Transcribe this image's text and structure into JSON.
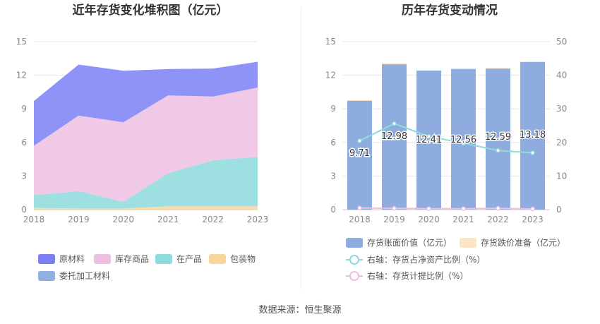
{
  "left_chart": {
    "title": "近年存货变化堆积图（亿元）",
    "legend": [
      {
        "label": "原材料",
        "color": "#7b7ff5"
      },
      {
        "label": "库存商品",
        "color": "#ecbfe0"
      },
      {
        "label": "在产品",
        "color": "#8ddbdc"
      },
      {
        "label": "包装物",
        "color": "#f8d69c"
      },
      {
        "label": "委托加工材料",
        "color": "#8fb0e0"
      }
    ]
  },
  "right_chart": {
    "title": "历年存货变动情况",
    "legend": [
      {
        "label": "存货账面价值（亿元）",
        "color": "#8eadde",
        "kind": "bar"
      },
      {
        "label": "存货跌价准备（亿元）",
        "color": "#fce6c6",
        "kind": "bar"
      },
      {
        "label": "右轴：存货占净资产比例（%）",
        "color": "#8ddbdc",
        "kind": "line"
      },
      {
        "label": "右轴：存货计提比例（%）",
        "color": "#ecbfe0",
        "kind": "line"
      }
    ]
  },
  "source_text": "数据来源：恒生聚源",
  "chart_data": [
    {
      "type": "area",
      "stacked": true,
      "title": "近年存货变化堆积图（亿元）",
      "categories": [
        "2018",
        "2019",
        "2020",
        "2021",
        "2022",
        "2023"
      ],
      "ylim": [
        0,
        15
      ],
      "yticks": [
        0,
        3,
        6,
        9,
        12,
        15
      ],
      "series": [
        {
          "name": "包装物",
          "values": [
            0.15,
            0.1,
            0.1,
            0.3,
            0.3,
            0.3
          ]
        },
        {
          "name": "在产品",
          "values": [
            1.15,
            1.55,
            0.6,
            2.95,
            4.1,
            4.4
          ]
        },
        {
          "name": "库存商品",
          "values": [
            4.4,
            6.75,
            7.1,
            6.95,
            5.7,
            6.2
          ]
        },
        {
          "name": "原材料",
          "values": [
            4.0,
            4.55,
            4.6,
            2.35,
            2.5,
            2.3
          ]
        },
        {
          "name": "委托加工材料",
          "values": [
            0,
            0,
            0,
            0,
            0,
            0
          ]
        }
      ]
    },
    {
      "type": "bar",
      "title": "历年存货变动情况",
      "categories": [
        "2018",
        "2019",
        "2020",
        "2021",
        "2022",
        "2023"
      ],
      "ylim": [
        0,
        15
      ],
      "yticks": [
        0,
        3,
        6,
        9,
        12,
        15
      ],
      "y2lim": [
        0,
        50
      ],
      "y2ticks": [
        0,
        10,
        20,
        30,
        40,
        50
      ],
      "series": [
        {
          "name": "存货账面价值（亿元）",
          "axis": "left",
          "values": [
            9.71,
            12.98,
            12.41,
            12.56,
            12.59,
            13.18
          ],
          "labels": [
            "9.71",
            "12.98",
            "12.41",
            "12.56",
            "12.59",
            "13.18"
          ]
        },
        {
          "name": "存货跌价准备（亿元）",
          "axis": "left",
          "values": [
            0.05,
            0.05,
            0.03,
            0.03,
            0.05,
            0.03
          ]
        },
        {
          "name": "右轴：存货占净资产比例（%）",
          "axis": "right",
          "type": "line",
          "values": [
            20.5,
            25.6,
            21.8,
            19.8,
            17.6,
            16.9
          ]
        },
        {
          "name": "右轴：存货计提比例（%）",
          "axis": "right",
          "type": "line",
          "values": [
            0.5,
            0.4,
            0.3,
            0.3,
            0.4,
            0.2
          ]
        }
      ]
    }
  ]
}
